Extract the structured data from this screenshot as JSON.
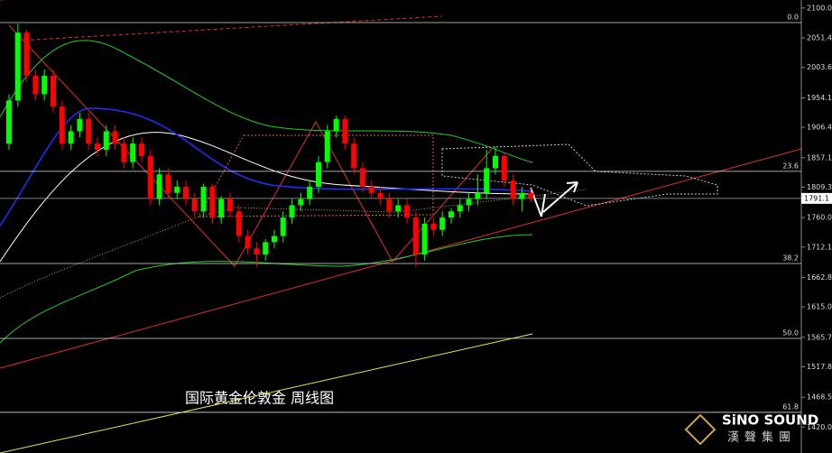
{
  "chart_data": {
    "type": "candlestick",
    "title": "国际黄金伦敦金 周线图",
    "brand": {
      "name": "SiNO SOUND",
      "subtitle": "漢聲集團"
    },
    "ylim": [
      1378,
      2113
    ],
    "yticks": [
      {
        "value": 2100,
        "label": "2100.0"
      },
      2051.4,
      2003.6,
      1954.1,
      1906.4,
      1857.1,
      1809.3,
      {
        "value": 1760,
        "label": "1760.0"
      },
      1712.1,
      1662.8,
      {
        "value": 1615,
        "label": "1615.0"
      },
      1565.7,
      1517.8,
      1468.5,
      {
        "value": 1420,
        "label": "1420.0"
      }
    ],
    "fib_levels": [
      {
        "value": 2076.4,
        "label": "0.0"
      },
      {
        "value": 1835,
        "label": "23.6"
      },
      {
        "value": 1685.5,
        "label": "38.2"
      },
      {
        "value": 1564,
        "label": "50.0"
      },
      {
        "value": 1444,
        "label": "61.8"
      }
    ],
    "last_price": 1791.1,
    "up_color": "#00ff00",
    "down_color": "#ff0000",
    "open": [
      1880,
      1950,
      2060,
      1990,
      1960,
      1990,
      1940,
      1880,
      1900,
      1920,
      1880,
      1870,
      1900,
      1880,
      1850,
      1880,
      1860,
      1790,
      1830,
      1800,
      1810,
      1790,
      1770,
      1810,
      1760,
      1790,
      1770,
      1730,
      1710,
      1700,
      1720,
      1730,
      1760,
      1780,
      1790,
      1810,
      1850,
      1900,
      1920,
      1880,
      1840,
      1810,
      1800,
      1790,
      1770,
      1780,
      1760,
      1700,
      1750,
      1740,
      1760,
      1770,
      1780,
      1790,
      1800,
      1840,
      1860,
      1820,
      1790,
      1800
    ],
    "high": [
      1960,
      2075,
      2065,
      2000,
      2000,
      2000,
      1950,
      1910,
      1930,
      1930,
      1890,
      1910,
      1910,
      1890,
      1890,
      1890,
      1870,
      1840,
      1840,
      1820,
      1820,
      1800,
      1815,
      1815,
      1795,
      1800,
      1780,
      1740,
      1720,
      1725,
      1740,
      1770,
      1790,
      1800,
      1820,
      1860,
      1910,
      1925,
      1925,
      1890,
      1850,
      1820,
      1810,
      1800,
      1790,
      1790,
      1770,
      1760,
      1760,
      1770,
      1775,
      1790,
      1800,
      1830,
      1870,
      1875,
      1865,
      1830,
      1810,
      1810
    ],
    "low": [
      1870,
      1940,
      1980,
      1950,
      1950,
      1930,
      1870,
      1870,
      1890,
      1870,
      1860,
      1860,
      1870,
      1840,
      1840,
      1850,
      1780,
      1780,
      1790,
      1790,
      1780,
      1760,
      1760,
      1750,
      1750,
      1760,
      1720,
      1700,
      1680,
      1690,
      1710,
      1720,
      1750,
      1770,
      1780,
      1800,
      1840,
      1890,
      1870,
      1830,
      1800,
      1790,
      1780,
      1760,
      1760,
      1750,
      1680,
      1690,
      1730,
      1730,
      1750,
      1760,
      1770,
      1780,
      1790,
      1830,
      1810,
      1780,
      1770,
      1785
    ],
    "close": [
      1950,
      2060,
      1990,
      1960,
      1990,
      1940,
      1880,
      1900,
      1920,
      1880,
      1870,
      1900,
      1880,
      1850,
      1880,
      1860,
      1790,
      1830,
      1800,
      1810,
      1790,
      1770,
      1810,
      1760,
      1790,
      1770,
      1730,
      1710,
      1700,
      1720,
      1730,
      1760,
      1780,
      1790,
      1810,
      1850,
      1900,
      1920,
      1880,
      1840,
      1810,
      1800,
      1790,
      1770,
      1780,
      1760,
      1700,
      1750,
      1740,
      1760,
      1770,
      1780,
      1790,
      1800,
      1840,
      1860,
      1820,
      1790,
      1800,
      1791.1
    ]
  }
}
